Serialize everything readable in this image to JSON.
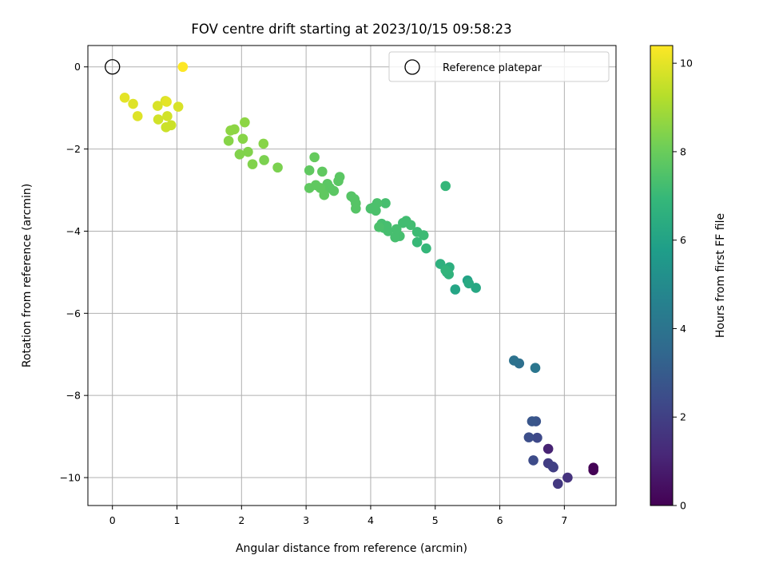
{
  "chart_data": {
    "type": "scatter",
    "title": "FOV centre drift starting at 2023/10/15 09:58:23",
    "xlabel": "Angular distance from reference (arcmin)",
    "ylabel": "Rotation from reference (arcmin)",
    "xlim": [
      -0.38,
      7.8
    ],
    "ylim": [
      -10.68,
      0.52
    ],
    "xticks": [
      0,
      1,
      2,
      3,
      4,
      5,
      6,
      7
    ],
    "yticks": [
      0,
      -2,
      -4,
      -6,
      -8,
      -10
    ],
    "grid": true,
    "legend": {
      "placement": "top-right",
      "label": "Reference platepar"
    },
    "reference_point": {
      "x": 0,
      "y": 0
    },
    "colorbar": {
      "label": "Hours from first FF file",
      "range": [
        0,
        10.4
      ],
      "ticks": [
        0,
        2,
        4,
        6,
        8,
        10
      ],
      "colormap": "viridis",
      "stops": [
        "#440154",
        "#482878",
        "#3e4989",
        "#31688e",
        "#26828e",
        "#1f9e89",
        "#35b779",
        "#6ece58",
        "#b5de2b",
        "#fde725"
      ]
    },
    "series": [
      {
        "x": [
          7.45,
          7.45,
          7.05,
          6.9,
          6.83,
          6.75,
          6.75,
          6.82,
          6.58,
          6.52,
          6.45,
          6.56,
          6.5,
          6.3,
          6.22,
          6.55,
          5.63,
          5.31,
          5.5,
          5.52,
          5.08,
          5.22,
          5.18,
          5.21,
          5.16,
          4.86,
          4.72,
          4.82,
          4.72,
          4.62,
          4.55,
          4.5,
          4.45,
          4.38,
          4.4,
          4.23,
          4.2,
          4.27,
          4.17,
          4.25,
          4.13,
          4.1,
          4.08,
          4.05,
          4.0,
          5.16,
          3.77,
          3.77,
          3.75,
          3.7,
          3.52,
          3.5,
          3.43,
          3.37,
          3.33,
          3.27,
          3.22,
          3.15,
          3.05,
          3.28,
          3.25,
          3.05,
          3.13,
          2.56,
          2.35,
          2.17,
          2.1,
          1.97,
          2.34,
          1.8,
          2.02,
          1.83,
          1.89,
          2.05,
          0.91,
          0.83,
          0.71,
          0.85,
          0.82,
          0.7,
          1.02,
          0.39,
          0.32,
          0.19,
          0.84,
          1.09
        ],
        "y": [
          -9.82,
          -9.76,
          -10.0,
          -10.15,
          -9.75,
          -9.65,
          -9.3,
          -9.73,
          -9.03,
          -9.58,
          -9.02,
          -8.63,
          -8.63,
          -7.22,
          -7.15,
          -7.33,
          -5.38,
          -5.42,
          -5.2,
          -5.27,
          -4.8,
          -4.88,
          -5.0,
          -5.05,
          -4.95,
          -4.42,
          -4.27,
          -4.1,
          -4.02,
          -3.85,
          -3.75,
          -3.8,
          -4.12,
          -4.15,
          -3.95,
          -3.32,
          -3.92,
          -4.0,
          -3.82,
          -3.87,
          -3.9,
          -3.32,
          -3.5,
          -3.42,
          -3.45,
          -2.9,
          -3.45,
          -3.32,
          -3.22,
          -3.15,
          -2.68,
          -2.78,
          -3.02,
          -2.95,
          -2.85,
          -3.0,
          -2.95,
          -2.88,
          -2.95,
          -3.12,
          -2.55,
          -2.52,
          -2.2,
          -2.45,
          -2.27,
          -2.37,
          -2.07,
          -2.13,
          -1.87,
          -1.8,
          -1.75,
          -1.55,
          -1.52,
          -1.35,
          -1.42,
          -1.47,
          -1.28,
          -1.2,
          -0.83,
          -0.95,
          -0.97,
          -1.2,
          -0.9,
          -0.75,
          -0.85,
          0.0
        ],
        "hours": [
          0.0,
          0.05,
          1.5,
          1.7,
          1.8,
          1.9,
          1.0,
          2.0,
          2.3,
          2.4,
          2.5,
          2.7,
          2.8,
          3.8,
          3.9,
          4.1,
          6.2,
          6.1,
          6.0,
          6.3,
          6.6,
          6.5,
          6.7,
          6.7,
          6.8,
          6.9,
          7.0,
          7.1,
          7.1,
          7.2,
          7.2,
          7.2,
          7.3,
          7.3,
          7.3,
          7.3,
          7.3,
          7.3,
          7.3,
          7.3,
          7.4,
          7.4,
          7.4,
          7.4,
          7.4,
          6.9,
          7.6,
          7.6,
          7.6,
          7.6,
          7.7,
          7.7,
          7.7,
          7.7,
          7.7,
          7.7,
          7.8,
          7.8,
          7.8,
          7.8,
          7.8,
          7.8,
          7.9,
          8.3,
          8.3,
          8.4,
          8.4,
          8.4,
          8.5,
          8.5,
          8.5,
          8.6,
          8.6,
          8.6,
          9.6,
          9.6,
          9.7,
          9.7,
          9.8,
          9.8,
          9.8,
          9.9,
          9.9,
          10.0,
          10.0,
          10.4
        ]
      }
    ]
  }
}
